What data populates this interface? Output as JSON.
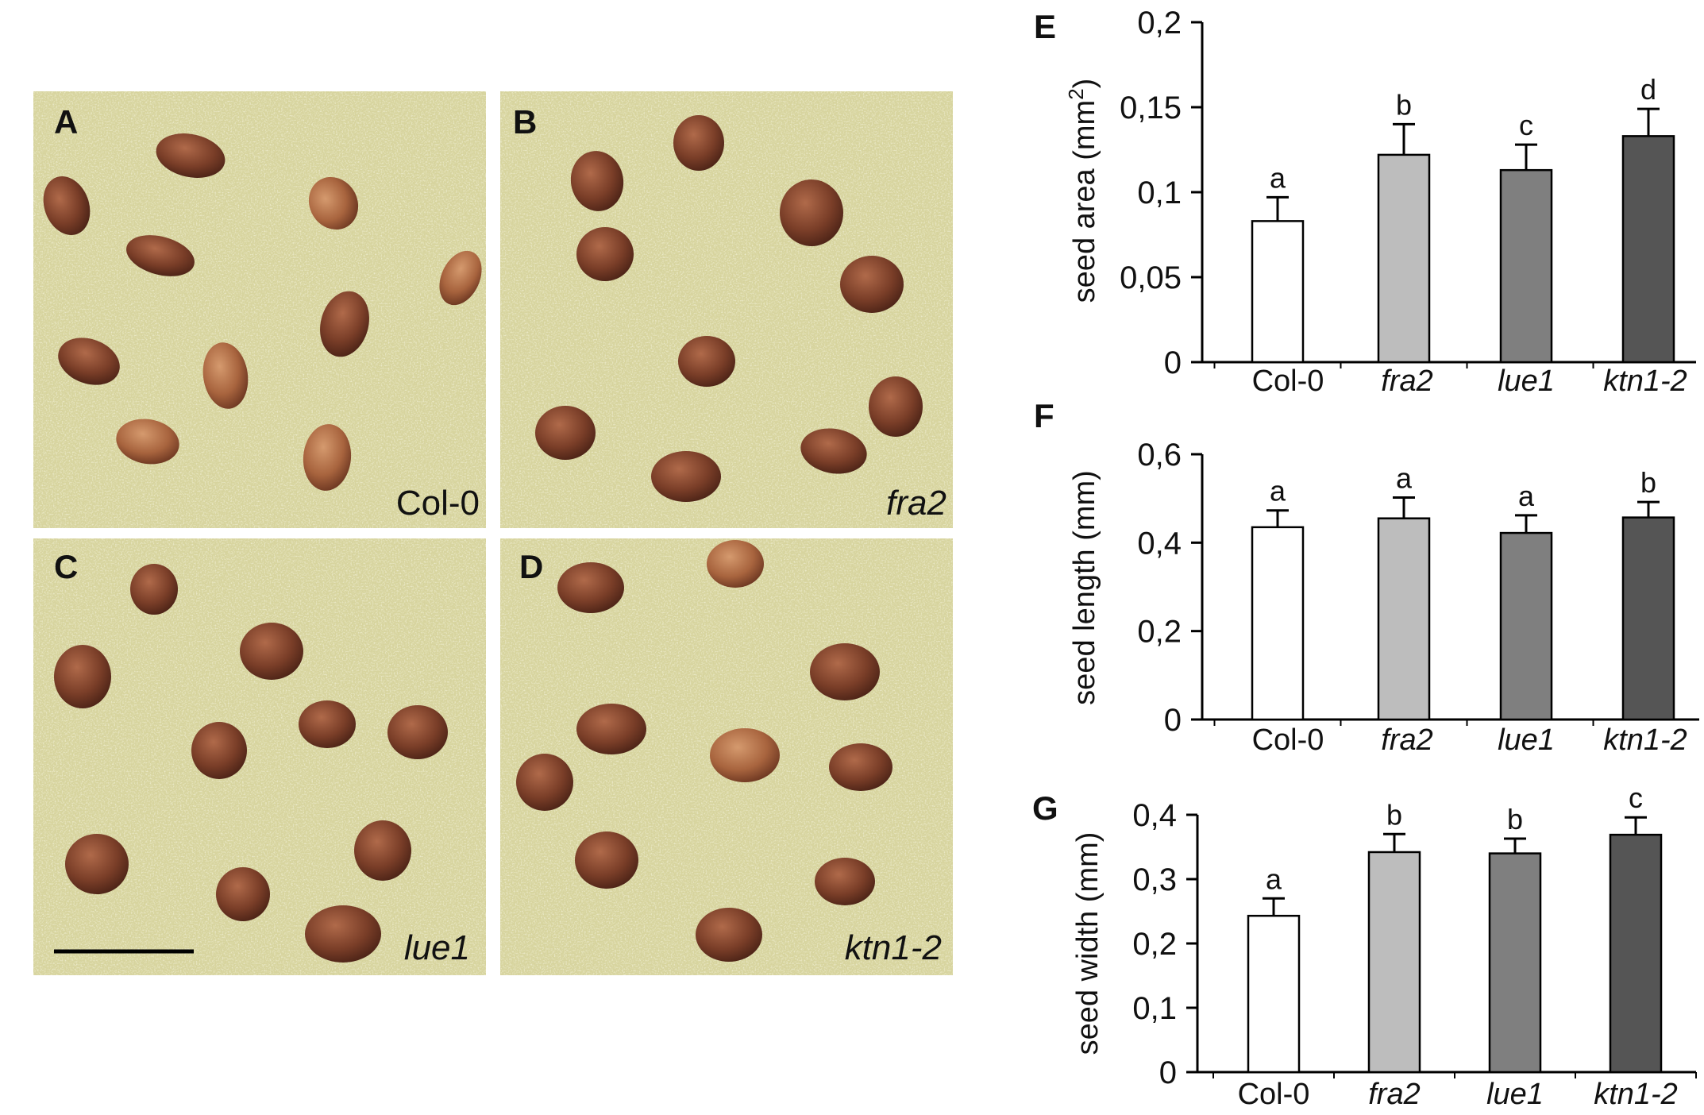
{
  "photos": [
    {
      "panel": "A",
      "genotype": "Col-0",
      "italic": false
    },
    {
      "panel": "B",
      "genotype": "fra2",
      "italic": true
    },
    {
      "panel": "C",
      "genotype": "lue1",
      "italic": true
    },
    {
      "panel": "D",
      "genotype": "ktn1-2",
      "italic": true
    }
  ],
  "colors": {
    "background": "#d7d49e",
    "seed": "#7a3e28",
    "seed_highlight": "#b06a4a",
    "bar_col0": "#ffffff",
    "bar_fra2": "#bdbdbd",
    "bar_lue1": "#7f7f7f",
    "bar_ktn12": "#555555"
  },
  "chart_data": [
    {
      "panel": "E",
      "type": "bar",
      "categories": [
        "Col-0",
        "fra2",
        "lue1",
        "ktn1-2"
      ],
      "italic": [
        false,
        true,
        true,
        true
      ],
      "values": [
        0.083,
        0.122,
        0.113,
        0.133
      ],
      "errors": [
        0.014,
        0.018,
        0.015,
        0.016
      ],
      "significance": [
        "a",
        "b",
        "c",
        "d"
      ],
      "ylabel_main": "seed area (mm",
      "ylabel_sup": "2",
      "ylabel_end": ")",
      "ylim": [
        0,
        0.2
      ],
      "yticks": [
        {
          "v": 0,
          "label": "0"
        },
        {
          "v": 0.05,
          "label": "0,05"
        },
        {
          "v": 0.1,
          "label": "0,1"
        },
        {
          "v": 0.15,
          "label": "0,15"
        },
        {
          "v": 0.2,
          "label": "0,2"
        }
      ]
    },
    {
      "panel": "F",
      "type": "bar",
      "categories": [
        "Col-0",
        "fra2",
        "lue1",
        "ktn1-2"
      ],
      "italic": [
        false,
        true,
        true,
        true
      ],
      "values": [
        0.435,
        0.455,
        0.422,
        0.457
      ],
      "errors": [
        0.038,
        0.047,
        0.04,
        0.035
      ],
      "significance": [
        "a",
        "a",
        "a",
        "b"
      ],
      "ylabel_main": "seed length (mm)",
      "ylabel_sup": "",
      "ylabel_end": "",
      "ylim": [
        0,
        0.6
      ],
      "yticks": [
        {
          "v": 0,
          "label": "0"
        },
        {
          "v": 0.2,
          "label": "0,2"
        },
        {
          "v": 0.4,
          "label": "0,4"
        },
        {
          "v": 0.6,
          "label": "0,6"
        }
      ]
    },
    {
      "panel": "G",
      "type": "bar",
      "categories": [
        "Col-0",
        "fra2",
        "lue1",
        "ktn1-2"
      ],
      "italic": [
        false,
        true,
        true,
        true
      ],
      "values": [
        0.243,
        0.342,
        0.34,
        0.369
      ],
      "errors": [
        0.027,
        0.028,
        0.023,
        0.027
      ],
      "significance": [
        "a",
        "b",
        "b",
        "c"
      ],
      "ylabel_main": "seed width (mm)",
      "ylabel_sup": "",
      "ylabel_end": "",
      "ylim": [
        0,
        0.4
      ],
      "yticks": [
        {
          "v": 0,
          "label": "0"
        },
        {
          "v": 0.1,
          "label": "0,1"
        },
        {
          "v": 0.2,
          "label": "0,2"
        },
        {
          "v": 0.3,
          "label": "0,3"
        },
        {
          "v": 0.4,
          "label": "0,4"
        }
      ]
    }
  ]
}
